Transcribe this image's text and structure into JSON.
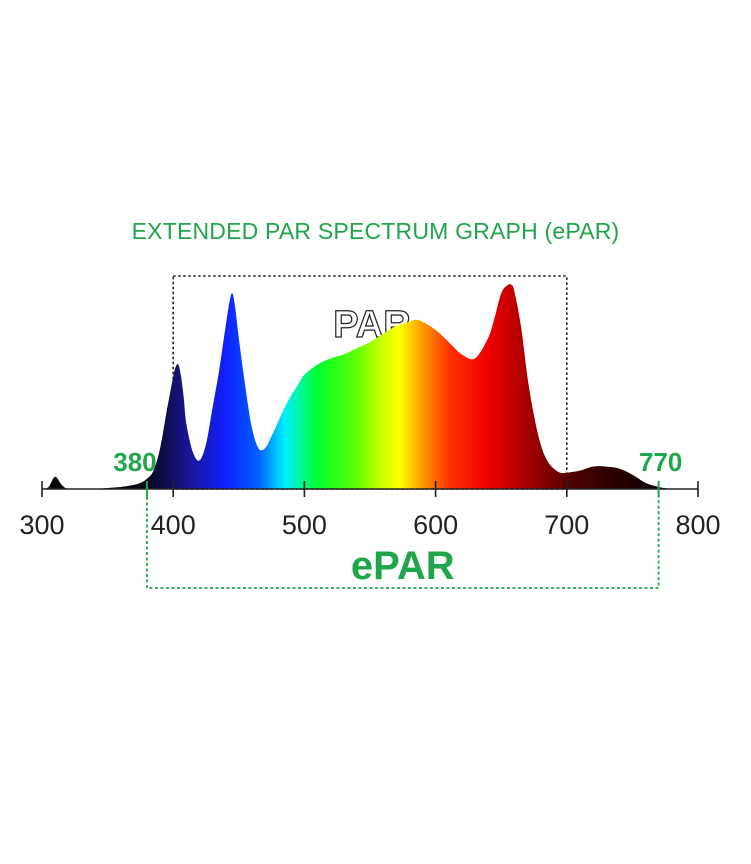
{
  "chart_data": {
    "type": "area",
    "title": "EXTENDED PAR SPECTRUM GRAPH (ePAR)",
    "xlabel": "",
    "ylabel": "",
    "xlim": [
      300,
      800
    ],
    "ylim": [
      0,
      1
    ],
    "x_ticks": [
      "300",
      "400",
      "500",
      "600",
      "700",
      "800"
    ],
    "grid": false,
    "series": [
      {
        "x": [
          300,
          305,
          310,
          315,
          320,
          330,
          340,
          350,
          360,
          370,
          375,
          380,
          385,
          390,
          395,
          400,
          402,
          404,
          406,
          408,
          410,
          415,
          420,
          425,
          430,
          435,
          440,
          443,
          445,
          447,
          450,
          455,
          460,
          465,
          470,
          475,
          480,
          485,
          490,
          495,
          500,
          510,
          520,
          530,
          540,
          550,
          560,
          570,
          580,
          585,
          590,
          600,
          610,
          620,
          630,
          640,
          645,
          650,
          655,
          658,
          660,
          665,
          670,
          675,
          680,
          685,
          690,
          695,
          700,
          710,
          720,
          730,
          740,
          750,
          760,
          770,
          780
        ],
        "values": [
          0,
          0.01,
          0.06,
          0.02,
          0,
          0,
          0,
          0.005,
          0.01,
          0.02,
          0.03,
          0.05,
          0.09,
          0.2,
          0.38,
          0.55,
          0.6,
          0.61,
          0.55,
          0.45,
          0.32,
          0.18,
          0.14,
          0.22,
          0.4,
          0.58,
          0.8,
          0.92,
          0.96,
          0.9,
          0.74,
          0.5,
          0.3,
          0.2,
          0.2,
          0.26,
          0.33,
          0.4,
          0.46,
          0.51,
          0.56,
          0.61,
          0.64,
          0.66,
          0.69,
          0.72,
          0.76,
          0.8,
          0.82,
          0.83,
          0.82,
          0.78,
          0.72,
          0.66,
          0.64,
          0.74,
          0.84,
          0.96,
          1.0,
          1.0,
          0.97,
          0.8,
          0.55,
          0.36,
          0.22,
          0.14,
          0.1,
          0.08,
          0.08,
          0.09,
          0.11,
          0.11,
          0.1,
          0.07,
          0.03,
          0.01,
          0
        ]
      }
    ],
    "annotations": {
      "par": {
        "label": "PAR",
        "range": [
          400,
          700
        ],
        "color": "#222222"
      },
      "epar": {
        "label": "ePAR",
        "range": [
          380,
          770
        ],
        "start_label": "380",
        "end_label": "770",
        "color": "#1fa64a"
      }
    }
  }
}
